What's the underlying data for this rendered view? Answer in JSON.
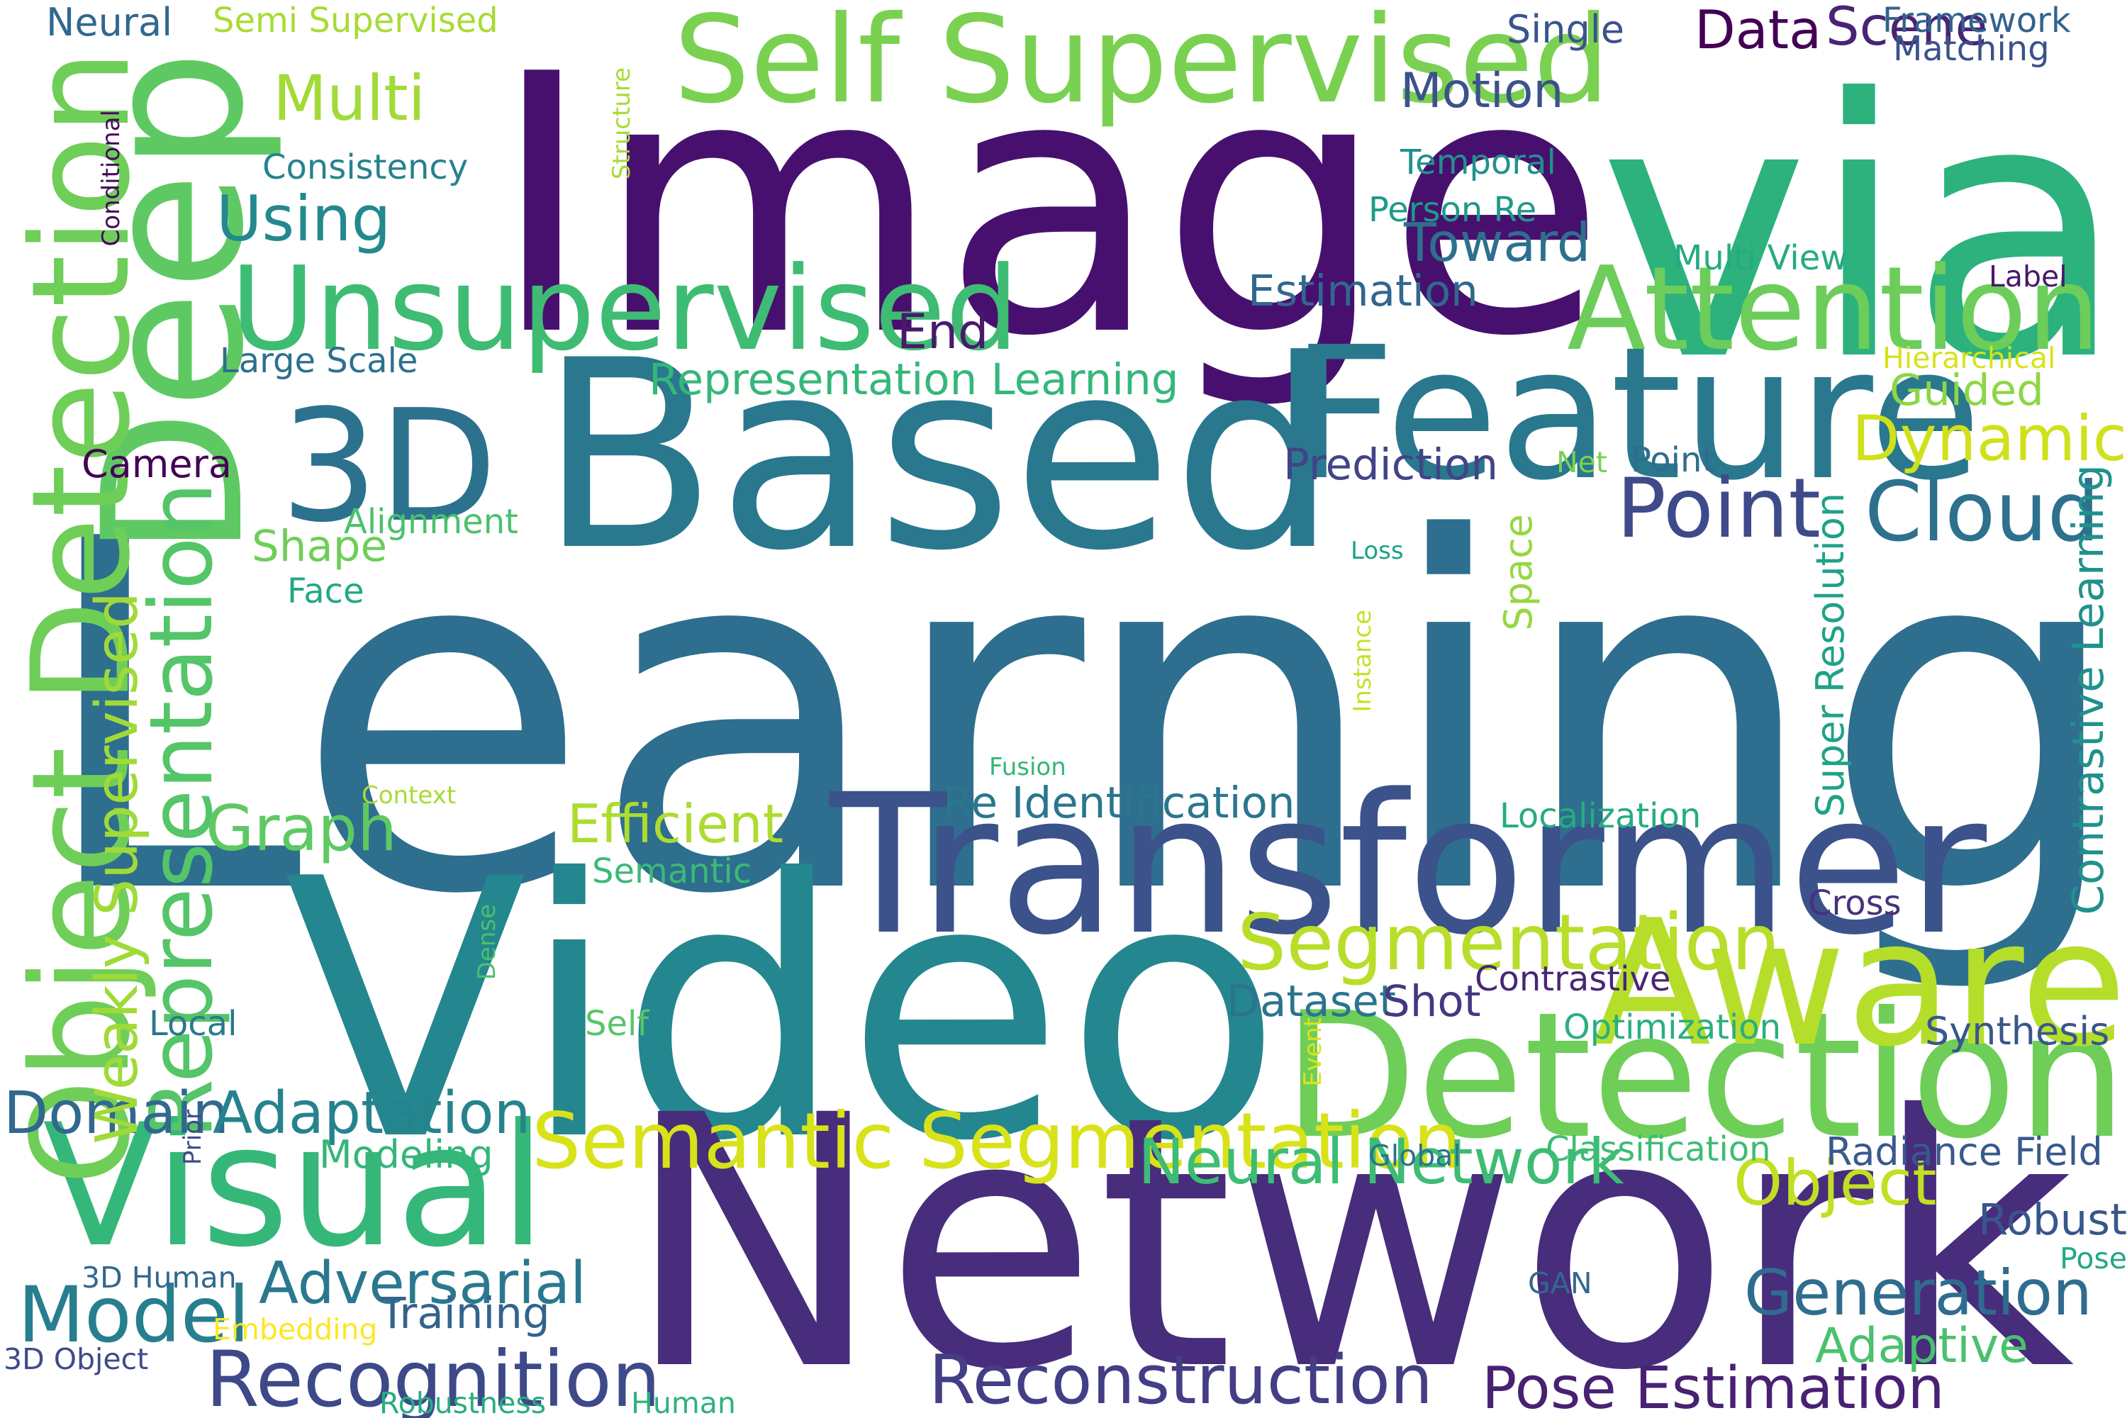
{
  "words": [
    {
      "text": "Learning",
      "color": "#2e6e8e",
      "weight": 1.0,
      "orientation": "horizontal"
    },
    {
      "text": "Image",
      "color": "#47106e",
      "weight": 0.74,
      "orientation": "horizontal"
    },
    {
      "text": "via",
      "color": "#2db27d",
      "weight": 0.74,
      "orientation": "horizontal"
    },
    {
      "text": "Video",
      "color": "#24868e",
      "weight": 0.74,
      "orientation": "horizontal"
    },
    {
      "text": "Network",
      "color": "#472d7b",
      "weight": 0.72,
      "orientation": "horizontal"
    },
    {
      "text": "Based",
      "color": "#29788e",
      "weight": 0.54,
      "orientation": "horizontal"
    },
    {
      "text": "Deep",
      "color": "#5ec962",
      "weight": 0.4,
      "orientation": "vertical"
    },
    {
      "text": "Transformer",
      "color": "#3b528b",
      "weight": 0.4,
      "orientation": "horizontal"
    },
    {
      "text": "Feature",
      "color": "#2a788e",
      "weight": 0.38,
      "orientation": "horizontal"
    },
    {
      "text": "Detection",
      "color": "#6ece58",
      "weight": 0.36,
      "orientation": "horizontal"
    },
    {
      "text": "Aware",
      "color": "#b5de2b",
      "weight": 0.36,
      "orientation": "horizontal"
    },
    {
      "text": "Visual",
      "color": "#35b779",
      "weight": 0.35,
      "orientation": "horizontal"
    },
    {
      "text": "3D",
      "color": "#2c728e",
      "weight": 0.32,
      "orientation": "horizontal"
    },
    {
      "text": "Object Detection",
      "color": "#6ece58",
      "weight": 0.28,
      "orientation": "vertical"
    },
    {
      "text": "Self Supervised",
      "color": "#7ad151",
      "weight": 0.25,
      "orientation": "horizontal"
    },
    {
      "text": "Unsupervised",
      "color": "#3fbc73",
      "weight": 0.24,
      "orientation": "horizontal"
    },
    {
      "text": "Attention",
      "color": "#6ccd5a",
      "weight": 0.24,
      "orientation": "horizontal"
    },
    {
      "text": "Representation",
      "color": "#54c568",
      "weight": 0.18,
      "orientation": "vertical"
    },
    {
      "text": "Point",
      "color": "#3e4a89",
      "weight": 0.17,
      "orientation": "horizontal"
    },
    {
      "text": "Cloud",
      "color": "#2d718e",
      "weight": 0.17,
      "orientation": "horizontal"
    },
    {
      "text": "Semantic Segmentation",
      "color": "#d8e219",
      "weight": 0.16,
      "orientation": "horizontal"
    },
    {
      "text": "Segmentation",
      "color": "#b8de29",
      "weight": 0.16,
      "orientation": "horizontal"
    },
    {
      "text": "Model",
      "color": "#277f8e",
      "weight": 0.16,
      "orientation": "horizontal"
    },
    {
      "text": "Recognition",
      "color": "#3e4989",
      "weight": 0.16,
      "orientation": "horizontal"
    },
    {
      "text": "Reconstruction",
      "color": "#433e85",
      "weight": 0.14,
      "orientation": "horizontal"
    },
    {
      "text": "Multi",
      "color": "#a2da37",
      "weight": 0.13,
      "orientation": "horizontal"
    },
    {
      "text": "Using",
      "color": "#23898e",
      "weight": 0.13,
      "orientation": "horizontal"
    },
    {
      "text": "Graph",
      "color": "#5ec962",
      "weight": 0.13,
      "orientation": "horizontal"
    },
    {
      "text": "Neural Network",
      "color": "#3dbc74",
      "weight": 0.13,
      "orientation": "horizontal"
    },
    {
      "text": "Generation",
      "color": "#2f6c8e",
      "weight": 0.13,
      "orientation": "horizontal"
    },
    {
      "text": "Dynamic",
      "color": "#d0e11c",
      "weight": 0.13,
      "orientation": "horizontal"
    },
    {
      "text": "Object",
      "color": "#c2df23",
      "weight": 0.13,
      "orientation": "horizontal"
    },
    {
      "text": "Domain",
      "color": "#31688e",
      "weight": 0.12,
      "orientation": "horizontal"
    },
    {
      "text": "Adaptation",
      "color": "#25838e",
      "weight": 0.12,
      "orientation": "horizontal"
    },
    {
      "text": "Adversarial",
      "color": "#2a788e",
      "weight": 0.12,
      "orientation": "horizontal"
    },
    {
      "text": "Weakly Supervised",
      "color": "#a0da39",
      "weight": 0.12,
      "orientation": "vertical"
    },
    {
      "text": "Pose Estimation",
      "color": "#482173",
      "weight": 0.12,
      "orientation": "horizontal"
    },
    {
      "text": "Efficient",
      "color": "#addc30",
      "weight": 0.11,
      "orientation": "horizontal"
    },
    {
      "text": "Toward",
      "color": "#2d708e",
      "weight": 0.11,
      "orientation": "horizontal"
    },
    {
      "text": "Data",
      "color": "#440154",
      "weight": 0.11,
      "orientation": "horizontal"
    },
    {
      "text": "Scene",
      "color": "#482475",
      "weight": 0.11,
      "orientation": "horizontal"
    },
    {
      "text": "Adaptive",
      "color": "#4ac16d",
      "weight": 0.1,
      "orientation": "horizontal"
    },
    {
      "text": "Motion",
      "color": "#3b528b",
      "weight": 0.1,
      "orientation": "horizontal"
    },
    {
      "text": "End",
      "color": "#481a6c",
      "weight": 0.1,
      "orientation": "horizontal"
    },
    {
      "text": "Shape",
      "color": "#6ece58",
      "weight": 0.09,
      "orientation": "horizontal"
    },
    {
      "text": "Estimation",
      "color": "#31688e",
      "weight": 0.09,
      "orientation": "horizontal"
    },
    {
      "text": "Guided",
      "color": "#8ed645",
      "weight": 0.09,
      "orientation": "horizontal"
    },
    {
      "text": "Representation Learning",
      "color": "#35b779",
      "weight": 0.09,
      "orientation": "horizontal"
    },
    {
      "text": "Prediction",
      "color": "#414487",
      "weight": 0.09,
      "orientation": "horizontal"
    },
    {
      "text": "Robust",
      "color": "#39568c",
      "weight": 0.09,
      "orientation": "horizontal"
    },
    {
      "text": "Training",
      "color": "#33638d",
      "weight": 0.09,
      "orientation": "horizontal"
    },
    {
      "text": "Dataset",
      "color": "#2c738e",
      "weight": 0.09,
      "orientation": "horizontal"
    },
    {
      "text": "Shot",
      "color": "#453882",
      "weight": 0.09,
      "orientation": "horizontal"
    },
    {
      "text": "Re Identification",
      "color": "#2a768e",
      "weight": 0.09,
      "orientation": "horizontal"
    },
    {
      "text": "Contrastive Learning",
      "color": "#21918c",
      "weight": 0.09,
      "orientation": "vertical"
    },
    {
      "text": "Super Resolution",
      "color": "#1fa287",
      "weight": 0.08,
      "orientation": "vertical"
    },
    {
      "text": "Modeling",
      "color": "#34b679",
      "weight": 0.08,
      "orientation": "horizontal"
    },
    {
      "text": "Neural",
      "color": "#31688e",
      "weight": 0.08,
      "orientation": "horizontal"
    },
    {
      "text": "Space",
      "color": "#95d840",
      "weight": 0.08,
      "orientation": "vertical"
    },
    {
      "text": "Single",
      "color": "#3a548c",
      "weight": 0.08,
      "orientation": "horizontal"
    },
    {
      "text": "Radiance Field",
      "color": "#38598c",
      "weight": 0.08,
      "orientation": "horizontal"
    },
    {
      "text": "Synthesis",
      "color": "#39568c",
      "weight": 0.08,
      "orientation": "horizontal"
    },
    {
      "text": "Camera",
      "color": "#440154",
      "weight": 0.08,
      "orientation": "horizontal"
    },
    {
      "text": "Consistency",
      "color": "#26828e",
      "weight": 0.07,
      "orientation": "horizontal"
    },
    {
      "text": "Framework",
      "color": "#33638d",
      "weight": 0.07,
      "orientation": "horizontal"
    },
    {
      "text": "Matching",
      "color": "#3b528b",
      "weight": 0.07,
      "orientation": "horizontal"
    },
    {
      "text": "Temporal",
      "color": "#21918c",
      "weight": 0.07,
      "orientation": "horizontal"
    },
    {
      "text": "Person Re",
      "color": "#1f9a8a",
      "weight": 0.07,
      "orientation": "horizontal"
    },
    {
      "text": "Multi View",
      "color": "#25ab82",
      "weight": 0.07,
      "orientation": "horizontal"
    },
    {
      "text": "Large Scale",
      "color": "#2d708e",
      "weight": 0.07,
      "orientation": "horizontal"
    },
    {
      "text": "Semi Supervised",
      "color": "#a8db34",
      "weight": 0.07,
      "orientation": "horizontal"
    },
    {
      "text": "Cross",
      "color": "#46327e",
      "weight": 0.07,
      "orientation": "horizontal"
    },
    {
      "text": "Contrastive",
      "color": "#482677",
      "weight": 0.07,
      "orientation": "horizontal"
    },
    {
      "text": "Localization",
      "color": "#25ac82",
      "weight": 0.07,
      "orientation": "horizontal"
    },
    {
      "text": "Classification",
      "color": "#3dbc74",
      "weight": 0.07,
      "orientation": "horizontal"
    },
    {
      "text": "Local",
      "color": "#2a788e",
      "weight": 0.07,
      "orientation": "horizontal"
    },
    {
      "text": "Face",
      "color": "#22a884",
      "weight": 0.07,
      "orientation": "horizontal"
    },
    {
      "text": "Alignment",
      "color": "#4ac16d",
      "weight": 0.07,
      "orientation": "horizontal"
    },
    {
      "text": "Semantic",
      "color": "#3aba76",
      "weight": 0.07,
      "orientation": "horizontal"
    },
    {
      "text": "Self",
      "color": "#56c667",
      "weight": 0.07,
      "orientation": "horizontal"
    },
    {
      "text": "Optimization",
      "color": "#29af7f",
      "weight": 0.07,
      "orientation": "horizontal"
    },
    {
      "text": "Point",
      "color": "#2f6c8e",
      "weight": 0.07,
      "orientation": "horizontal"
    },
    {
      "text": "Net",
      "color": "#7ad151",
      "weight": 0.06,
      "orientation": "horizontal"
    },
    {
      "text": "Hierarchical",
      "color": "#d8e219",
      "weight": 0.06,
      "orientation": "horizontal"
    },
    {
      "text": "Label",
      "color": "#48186a",
      "weight": 0.06,
      "orientation": "horizontal"
    },
    {
      "text": "3D Human",
      "color": "#31688e",
      "weight": 0.06,
      "orientation": "horizontal"
    },
    {
      "text": "3D Object",
      "color": "#3e4a89",
      "weight": 0.06,
      "orientation": "horizontal"
    },
    {
      "text": "Embedding",
      "color": "#fde725",
      "weight": 0.06,
      "orientation": "horizontal"
    },
    {
      "text": "Robustness",
      "color": "#26ad81",
      "weight": 0.06,
      "orientation": "horizontal"
    },
    {
      "text": "Human",
      "color": "#2db27d",
      "weight": 0.06,
      "orientation": "horizontal"
    },
    {
      "text": "GAN",
      "color": "#31688e",
      "weight": 0.06,
      "orientation": "horizontal"
    },
    {
      "text": "Pose",
      "color": "#22a884",
      "weight": 0.06,
      "orientation": "horizontal"
    },
    {
      "text": "Global",
      "color": "#2c738e",
      "weight": 0.06,
      "orientation": "horizontal"
    },
    {
      "text": "Context",
      "color": "#a8db34",
      "weight": 0.05,
      "orientation": "horizontal"
    },
    {
      "text": "Fusion",
      "color": "#34b679",
      "weight": 0.05,
      "orientation": "horizontal"
    },
    {
      "text": "Loss",
      "color": "#1fa187",
      "weight": 0.05,
      "orientation": "horizontal"
    },
    {
      "text": "Instance",
      "color": "#c8e020",
      "weight": 0.05,
      "orientation": "vertical"
    },
    {
      "text": "Structure",
      "color": "#a8db34",
      "weight": 0.05,
      "orientation": "vertical"
    },
    {
      "text": "Conditional",
      "color": "#46085c",
      "weight": 0.05,
      "orientation": "vertical"
    },
    {
      "text": "Dense",
      "color": "#4ac16d",
      "weight": 0.05,
      "orientation": "vertical"
    },
    {
      "text": "Prior",
      "color": "#3e4a89",
      "weight": 0.05,
      "orientation": "vertical"
    },
    {
      "text": "Event",
      "color": "#dde318",
      "weight": 0.05,
      "orientation": "vertical"
    }
  ]
}
